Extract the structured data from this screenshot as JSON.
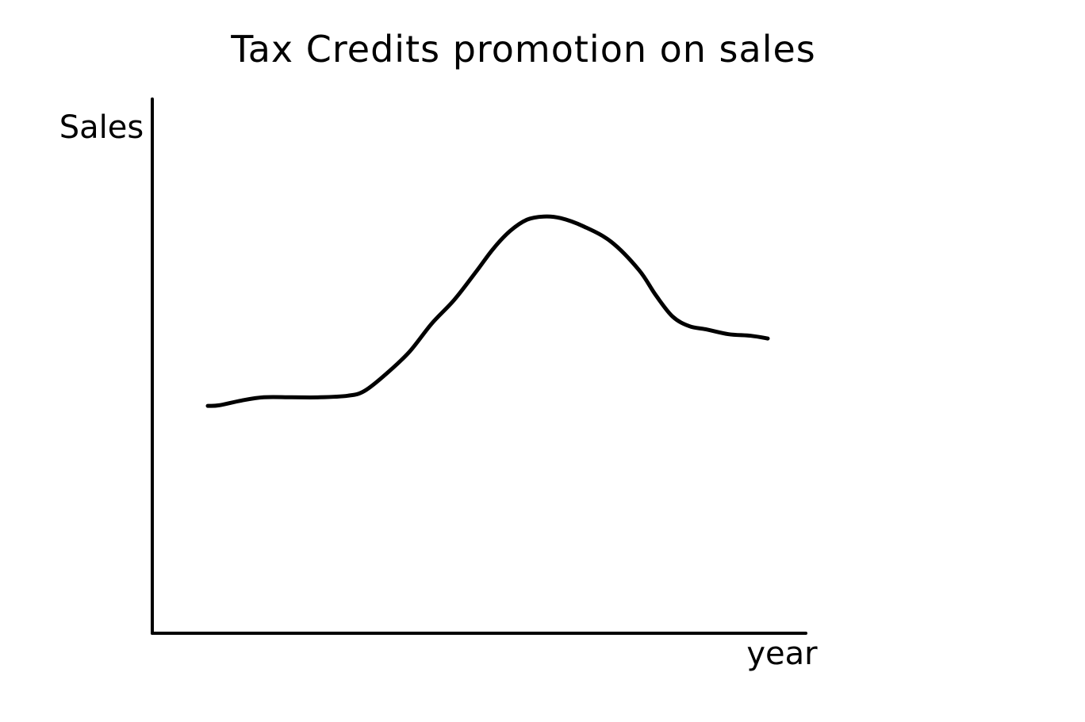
{
  "chart_data": {
    "type": "line",
    "title": "Tax Credits promotion on sales",
    "xlabel": "year",
    "ylabel": "Sales",
    "xlim": [
      0,
      100
    ],
    "ylim": [
      0,
      100
    ],
    "grid": false,
    "legend": "none",
    "series": [
      {
        "color": "#000000",
        "x": [
          0,
          2,
          6,
          10,
          15,
          20,
          25,
          28,
          32,
          36,
          40,
          44,
          48,
          51,
          54,
          57,
          60,
          63,
          67,
          72,
          77,
          80,
          83,
          86,
          89,
          93,
          97,
          100
        ],
        "y": [
          42.5,
          42.6,
          43.5,
          44.1,
          44.1,
          44.1,
          44.4,
          45.3,
          48.6,
          52.6,
          57.9,
          62.3,
          67.7,
          71.9,
          75.2,
          77.3,
          77.9,
          77.6,
          76.1,
          73.2,
          67.9,
          63.2,
          59.2,
          57.4,
          56.8,
          55.9,
          55.6,
          55.1
        ]
      }
    ]
  }
}
